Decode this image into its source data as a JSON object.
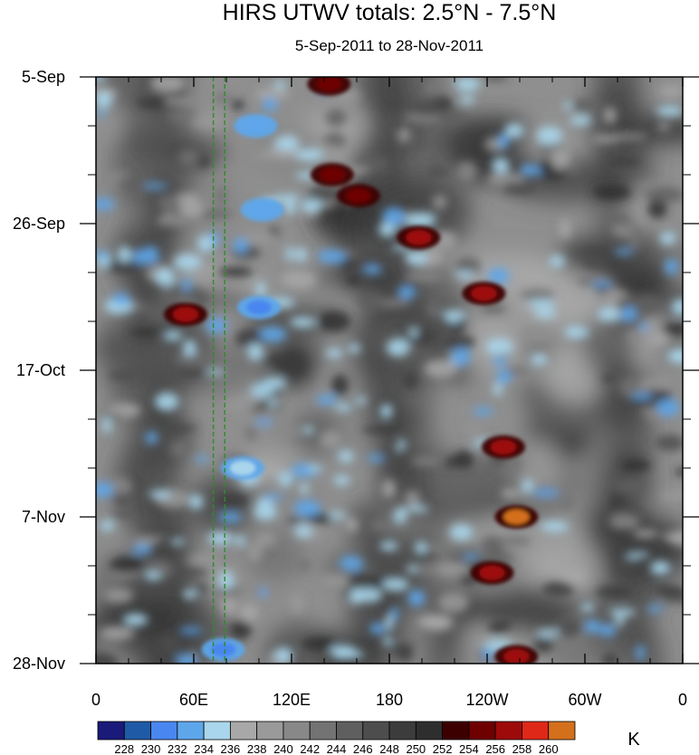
{
  "chart_data": {
    "type": "heatmap",
    "title": "HIRS UTWV totals: 2.5°N - 7.5°N",
    "subtitle": "5-Sep-2011 to 28-Nov-2011",
    "x_ticks": [
      "0",
      "60E",
      "120E",
      "180",
      "120W",
      "60W",
      "0"
    ],
    "x_tick_values": [
      0,
      60,
      120,
      180,
      240,
      300,
      360
    ],
    "xlim": [
      0,
      360
    ],
    "y_ticks": [
      "5-Sep",
      "26-Sep",
      "17-Oct",
      "7-Nov",
      "28-Nov"
    ],
    "y_tick_values": [
      "2011-09-05",
      "2011-09-26",
      "2011-10-17",
      "2011-11-07",
      "2011-11-28"
    ],
    "ylim": [
      "2011-09-05",
      "2011-11-28"
    ],
    "y_direction": "downward",
    "colorbar": {
      "unit": "K",
      "levels": [
        "228",
        "230",
        "232",
        "234",
        "236",
        "238",
        "240",
        "242",
        "244",
        "246",
        "248",
        "250",
        "252",
        "254",
        "256",
        "258",
        "260"
      ],
      "colors": [
        "#1a1a7a",
        "#1f5aa6",
        "#4a86f0",
        "#5ea6ea",
        "#a9d6ec",
        "#a8a8a8",
        "#9a9a9a",
        "#888888",
        "#737373",
        "#5f5f5f",
        "#4d4d4d",
        "#3c3c3c",
        "#2e2e2e",
        "#3d0000",
        "#6e0000",
        "#9e0a0a",
        "#e02818",
        "#d4701c"
      ]
    },
    "reference_lines": [
      {
        "x": 72,
        "color": "#2e8b2e",
        "style": "dashed"
      },
      {
        "x": 79,
        "color": "#2e8b2e",
        "style": "dashed"
      }
    ],
    "features": [
      {
        "kind": "warm",
        "lon": 143,
        "date": "2011-09-06",
        "value": 254
      },
      {
        "kind": "warm",
        "lon": 145,
        "date": "2011-09-19",
        "value": 254
      },
      {
        "kind": "warm",
        "lon": 161,
        "date": "2011-09-22",
        "value": 254
      },
      {
        "kind": "warm",
        "lon": 198,
        "date": "2011-09-28",
        "value": 256
      },
      {
        "kind": "warm",
        "lon": 238,
        "date": "2011-10-06",
        "value": 256
      },
      {
        "kind": "warm",
        "lon": 250,
        "date": "2011-10-28",
        "value": 256
      },
      {
        "kind": "warm",
        "lon": 258,
        "date": "2011-11-07",
        "value": 260
      },
      {
        "kind": "warm",
        "lon": 243,
        "date": "2011-11-15",
        "value": 256
      },
      {
        "kind": "warm",
        "lon": 258,
        "date": "2011-11-27",
        "value": 256
      },
      {
        "kind": "warm",
        "lon": 55,
        "date": "2011-10-09",
        "value": 256
      },
      {
        "kind": "cold",
        "lon": 98,
        "date": "2011-09-12",
        "value": 232
      },
      {
        "kind": "cold",
        "lon": 102,
        "date": "2011-09-24",
        "value": 232
      },
      {
        "kind": "cold",
        "lon": 100,
        "date": "2011-10-08",
        "value": 230
      },
      {
        "kind": "cold",
        "lon": 90,
        "date": "2011-10-31",
        "value": 234
      },
      {
        "kind": "cold",
        "lon": 78,
        "date": "2011-11-26",
        "value": 230
      }
    ]
  }
}
